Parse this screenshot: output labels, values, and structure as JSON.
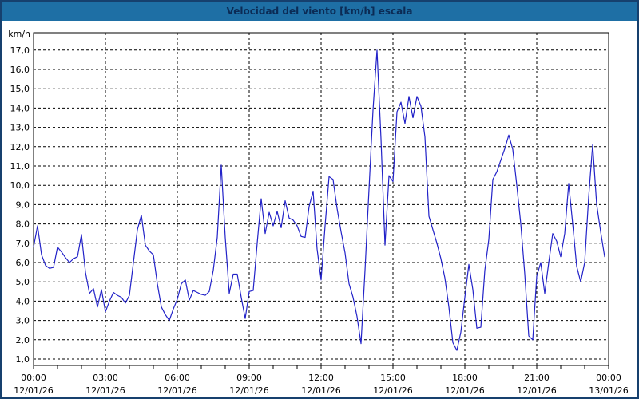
{
  "window": {
    "title": "Velocidad del viento [km/h] escala"
  },
  "colors": {
    "titlebar_bg": "#1e6fa5",
    "titlebar_text": "#0b2b55",
    "window_border": "#16406e",
    "plot_bg": "#ffffff",
    "grid_color": "#000000",
    "series_color": "#2222c8",
    "text_color": "#000000"
  },
  "chart_data": {
    "type": "line",
    "title": "Velocidad del viento [km/h] escala",
    "ylabel": "km/h",
    "y_unit": "km/h",
    "ylim": [
      1.0,
      17.0
    ],
    "y_tick_step": 1.0,
    "y_tick_labels": [
      "17,0",
      "16,0",
      "15,0",
      "14,0",
      "13,0",
      "12,0",
      "11,0",
      "10,0",
      "9,0",
      "8,0",
      "7,0",
      "6,0",
      "5,0",
      "4,0",
      "3,0",
      "2,0",
      "1,0"
    ],
    "grid": "dashed",
    "legend_position": "none",
    "x_axis_hours": 24,
    "x_minor_tick_hours": 1,
    "x_major_tick_hours": 3,
    "x_ticks": [
      {
        "time": "00:00",
        "date": "12/01/26"
      },
      {
        "time": "03:00",
        "date": "12/01/26"
      },
      {
        "time": "06:00",
        "date": "12/01/26"
      },
      {
        "time": "09:00",
        "date": "12/01/26"
      },
      {
        "time": "12:00",
        "date": "12/01/26"
      },
      {
        "time": "15:00",
        "date": "12/01/26"
      },
      {
        "time": "18:00",
        "date": "12/01/26"
      },
      {
        "time": "21:00",
        "date": "12/01/26"
      },
      {
        "time": "00:00",
        "date": "13/01/26"
      }
    ],
    "sample_interval_minutes": 10,
    "x_start_minutes": 0,
    "values": [
      6.8,
      7.9,
      6.4,
      5.85,
      5.7,
      5.75,
      6.8,
      6.55,
      6.25,
      6.0,
      6.2,
      6.3,
      7.45,
      5.5,
      4.4,
      4.65,
      3.7,
      4.6,
      3.45,
      4.0,
      4.45,
      4.3,
      4.2,
      3.9,
      4.3,
      6.0,
      7.7,
      8.45,
      6.9,
      6.6,
      6.4,
      4.9,
      3.7,
      3.3,
      3.0,
      3.6,
      4.1,
      4.9,
      5.1,
      4.05,
      4.55,
      4.45,
      4.35,
      4.3,
      4.5,
      5.6,
      7.3,
      11.05,
      7.3,
      4.4,
      5.4,
      5.4,
      4.2,
      3.1,
      4.5,
      4.55,
      7.0,
      9.3,
      7.5,
      8.6,
      7.9,
      8.65,
      7.8,
      9.2,
      8.3,
      8.2,
      7.9,
      7.35,
      7.3,
      8.9,
      9.7,
      6.7,
      5.1,
      7.9,
      10.45,
      10.3,
      8.8,
      7.6,
      6.5,
      4.9,
      4.2,
      3.2,
      1.8,
      5.6,
      9.8,
      13.9,
      17.0,
      12.4,
      6.9,
      10.5,
      10.2,
      13.8,
      14.3,
      13.2,
      14.6,
      13.5,
      14.6,
      14.1,
      12.5,
      8.4,
      7.7,
      7.0,
      6.2,
      5.2,
      3.7,
      1.85,
      1.45,
      2.4,
      4.2,
      5.9,
      4.6,
      2.6,
      2.65,
      5.6,
      7.2,
      10.3,
      10.7,
      11.3,
      11.9,
      12.6,
      11.85,
      10.0,
      8.0,
      5.4,
      2.2,
      2.0,
      5.3,
      6.0,
      4.4,
      6.0,
      7.5,
      7.1,
      6.3,
      7.5,
      10.1,
      8.0,
      5.8,
      5.0,
      6.0,
      9.4,
      12.1,
      9.0,
      7.6,
      6.3
    ]
  }
}
